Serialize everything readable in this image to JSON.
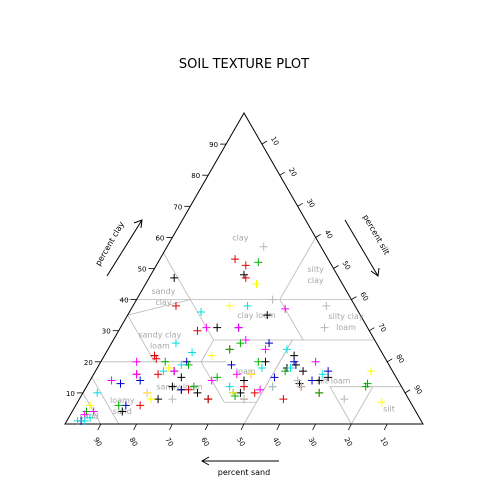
{
  "chart_data": {
    "type": "scatter",
    "subtype": "ternary",
    "title": "SOIL TEXTURE PLOT",
    "axes": {
      "clay": {
        "label": "percent clay",
        "ticks": [
          10,
          20,
          30,
          40,
          50,
          60,
          70,
          80,
          90
        ]
      },
      "silt": {
        "label": "percent silt",
        "ticks": [
          10,
          20,
          30,
          40,
          50,
          60,
          70,
          80,
          90
        ]
      },
      "sand": {
        "label": "percent sand",
        "ticks": [
          90,
          80,
          70,
          60,
          50,
          40,
          30,
          20,
          10
        ]
      }
    },
    "regions": [
      {
        "name": "clay",
        "label_lines": [
          "clay"
        ],
        "sand": 21,
        "clay": 60
      },
      {
        "name": "silty clay",
        "label_lines": [
          "silty",
          "clay"
        ],
        "sand": 6,
        "clay": 48
      },
      {
        "name": "sandy clay",
        "label_lines": [
          "sandy",
          "clay"
        ],
        "sand": 52,
        "clay": 41
      },
      {
        "name": "clay loam",
        "label_lines": [
          "clay loam"
        ],
        "sand": 29,
        "clay": 35
      },
      {
        "name": "silty clay loam",
        "label_lines": [
          "silty clay",
          "loam"
        ],
        "sand": 5,
        "clay": 33
      },
      {
        "name": "sandy clay loam",
        "label_lines": [
          "sandy clay",
          "loam"
        ],
        "sand": 60,
        "clay": 27
      },
      {
        "name": "loam",
        "label_lines": [
          "loam"
        ],
        "sand": 41,
        "clay": 17
      },
      {
        "name": "silt loam",
        "label_lines": [
          "silt loam"
        ],
        "sand": 18,
        "clay": 14
      },
      {
        "name": "sandy loam",
        "label_lines": [
          "sandy loam"
        ],
        "sand": 62,
        "clay": 12
      },
      {
        "name": "loamy sand",
        "label_lines": [
          "loamy",
          "sand"
        ],
        "sand": 81,
        "clay": 6
      },
      {
        "name": "sand",
        "label_lines": [
          "sand"
        ],
        "sand": 92,
        "clay": 2.5
      },
      {
        "name": "silt",
        "label_lines": [
          "silt"
        ],
        "sand": 7,
        "clay": 5
      }
    ],
    "series": [
      {
        "color": "#000000",
        "points": [
          [
            46,
            47
          ],
          [
            26,
            48
          ],
          [
            24,
            45
          ],
          [
            42,
            31
          ],
          [
            26,
            35
          ],
          [
            25,
            22
          ],
          [
            29,
            18
          ],
          [
            58,
            10
          ],
          [
            64,
            12
          ],
          [
            56,
            8
          ],
          [
            70,
            8
          ],
          [
            82,
            4
          ],
          [
            60,
            15
          ],
          [
            61,
            17
          ],
          [
            62,
            11
          ],
          [
            46,
            10
          ],
          [
            48,
            10
          ],
          [
            43,
            14
          ],
          [
            34,
            20
          ],
          [
            26,
            19
          ],
          [
            19,
            15
          ],
          [
            22,
            14
          ],
          [
            25,
            17
          ],
          [
            28,
            13
          ]
        ]
      },
      {
        "color": "#0000cc",
        "points": [
          [
            56,
            20
          ],
          [
            64,
            22
          ],
          [
            62,
            11
          ],
          [
            72,
            14
          ],
          [
            80,
            6
          ],
          [
            95,
            1
          ],
          [
            78,
            13
          ],
          [
            44,
            19
          ],
          [
            34,
            15
          ],
          [
            36,
            31
          ],
          [
            30,
            26
          ],
          [
            26,
            20
          ],
          [
            24,
            14
          ],
          [
            18,
            17
          ]
        ]
      },
      {
        "color": "#e00000",
        "points": [
          [
            26,
            53
          ],
          [
            24,
            51
          ],
          [
            26,
            47
          ],
          [
            50,
            38
          ],
          [
            48,
            30
          ],
          [
            42,
            24
          ],
          [
            56,
            8
          ],
          [
            60,
            11
          ],
          [
            76,
            6
          ],
          [
            72,
            16
          ],
          [
            64,
            21
          ],
          [
            64,
            22
          ],
          [
            66,
            16
          ],
          [
            42,
            10
          ],
          [
            44,
            12
          ],
          [
            46,
            8
          ],
          [
            35,
            8
          ],
          [
            28,
            12
          ],
          [
            24,
            10
          ]
        ]
      },
      {
        "color": "#00b000",
        "points": [
          [
            20,
            52
          ],
          [
            38,
            26
          ],
          [
            36,
            20
          ],
          [
            42,
            24
          ],
          [
            56,
            19
          ],
          [
            62,
            20
          ],
          [
            58,
            12
          ],
          [
            82,
            6
          ],
          [
            92,
            4
          ],
          [
            50,
            15
          ],
          [
            48,
            9
          ],
          [
            30,
            17
          ],
          [
            24,
            10
          ],
          [
            9,
            13
          ],
          [
            10,
            12
          ]
        ]
      },
      {
        "color": "#ff00ff",
        "points": [
          [
            20,
            37
          ],
          [
            36,
            31
          ],
          [
            45,
            31
          ],
          [
            36,
            27
          ],
          [
            52,
            14
          ],
          [
            70,
            20
          ],
          [
            80,
            14
          ],
          [
            72,
            16
          ],
          [
            72,
            10
          ],
          [
            90,
            4
          ],
          [
            93,
            3
          ],
          [
            61,
            17
          ],
          [
            44,
            16
          ],
          [
            40,
            16
          ],
          [
            40,
            11
          ],
          [
            32,
            24
          ],
          [
            20,
            20
          ]
        ]
      },
      {
        "color": "#00e0e0",
        "points": [
          [
            30,
            38
          ],
          [
            44,
            36
          ],
          [
            56,
            26
          ],
          [
            58,
            19
          ],
          [
            64,
            17
          ],
          [
            53,
            23
          ],
          [
            86,
            10
          ],
          [
            94,
            1
          ],
          [
            96,
            1
          ],
          [
            92,
            2
          ],
          [
            48,
            12
          ],
          [
            36,
            12
          ],
          [
            36,
            18
          ],
          [
            28,
            18
          ],
          [
            26,
            24
          ],
          [
            20,
            16
          ]
        ]
      },
      {
        "color": "#ffff00",
        "points": [
          [
            24,
            45
          ],
          [
            35,
            38
          ],
          [
            8,
            7
          ],
          [
            6,
            17
          ],
          [
            48,
            22
          ],
          [
            48,
            10
          ],
          [
            72,
            8
          ],
          [
            72,
            10
          ],
          [
            90,
            6
          ],
          [
            62,
            18
          ],
          [
            40,
            16
          ]
        ]
      },
      {
        "color": "#b8b8b8",
        "points": [
          [
            16,
            57
          ],
          [
            8,
            38
          ],
          [
            22,
            40
          ],
          [
            12,
            31
          ],
          [
            28,
            14
          ],
          [
            18,
            8
          ],
          [
            28,
            12
          ],
          [
            46,
            8
          ],
          [
            66,
            8
          ],
          [
            36,
            12
          ]
        ]
      }
    ]
  }
}
